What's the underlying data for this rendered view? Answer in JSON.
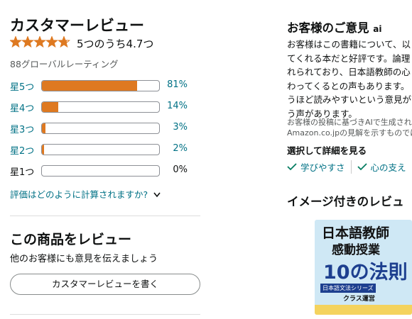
{
  "reviews": {
    "title": "カスタマーレビュー",
    "stars": {
      "value": 4.7,
      "max": 5
    },
    "rating_text": "5つのうち4.7つ",
    "global_ratings": "88グローバルレーティング",
    "histogram": {
      "labels": [
        "星5つ",
        "星4つ",
        "星3つ",
        "星2つ",
        "星1つ"
      ],
      "values": [
        81,
        14,
        3,
        2,
        0
      ],
      "value_labels": [
        "81%",
        "14%",
        "3%",
        "2%",
        "0%"
      ]
    },
    "how_calculated": "評価はどのように計算されますか?"
  },
  "write_review": {
    "title": "この商品をレビュー",
    "subtitle": "他のお客様にも意見を伝えましょう",
    "button": "カスタマーレビューを書く"
  },
  "opinions": {
    "title": "お客様のご意見",
    "badge": "ai",
    "lines": [
      "お客様はこの書籍について、以",
      "てくれる本だと好評です。論理",
      "れられており、日本語教師の心",
      "わってくるとの声もあります。",
      "うほど読みやすいという意見が",
      "う声があります。"
    ],
    "note_lines": [
      "お客様の投稿に基づきAIで生成された",
      "Amazon.co.jpの見解を示すものでは"
    ],
    "select_label": "選択して詳細を見る",
    "chips": [
      "学びやすさ",
      "心の支え"
    ]
  },
  "image_reviews": {
    "title": "イメージ付きのレビュ",
    "book": {
      "line1": "日本語教師",
      "line2": "感動授業",
      "line3": "10の法則",
      "series": "日本語文法シリーズ",
      "sub": "クラス運営"
    }
  }
}
